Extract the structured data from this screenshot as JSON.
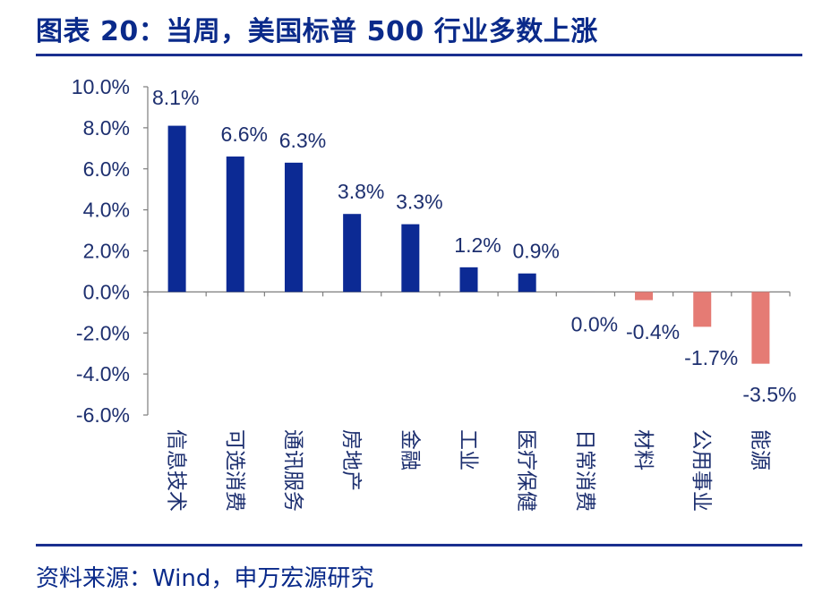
{
  "header": {
    "title": "图表 20：当周，美国标普 500 行业多数上涨"
  },
  "footer": {
    "source": "资料来源：Wind，申万宏源研究"
  },
  "colors": {
    "positive": "#0c2a94",
    "negative": "#e57b74",
    "rule": "#1a2f8f",
    "text": "#1d2f6f"
  },
  "chart_data": {
    "type": "bar",
    "title": "",
    "xlabel": "",
    "ylabel": "",
    "ylim": [
      -6.0,
      10.0
    ],
    "yticks": [
      "10.0%",
      "8.0%",
      "6.0%",
      "4.0%",
      "2.0%",
      "0.0%",
      "-2.0%",
      "-4.0%",
      "-6.0%"
    ],
    "yticks_values": [
      10,
      8,
      6,
      4,
      2,
      0,
      -2,
      -4,
      -6
    ],
    "categories": [
      "信息技术",
      "可选消费",
      "通讯服务",
      "房地产",
      "金融",
      "工业",
      "医疗保健",
      "日常消费",
      "材料",
      "公用事业",
      "能源"
    ],
    "values": [
      8.1,
      6.6,
      6.3,
      3.8,
      3.3,
      1.2,
      0.9,
      0.0,
      -0.4,
      -1.7,
      -3.5
    ],
    "labels": [
      "8.1%",
      "6.6%",
      "6.3%",
      "3.8%",
      "3.3%",
      "1.2%",
      "0.9%",
      "0.0%",
      "-0.4%",
      "-1.7%",
      "-3.5%"
    ],
    "grid": false,
    "legend": "none"
  }
}
